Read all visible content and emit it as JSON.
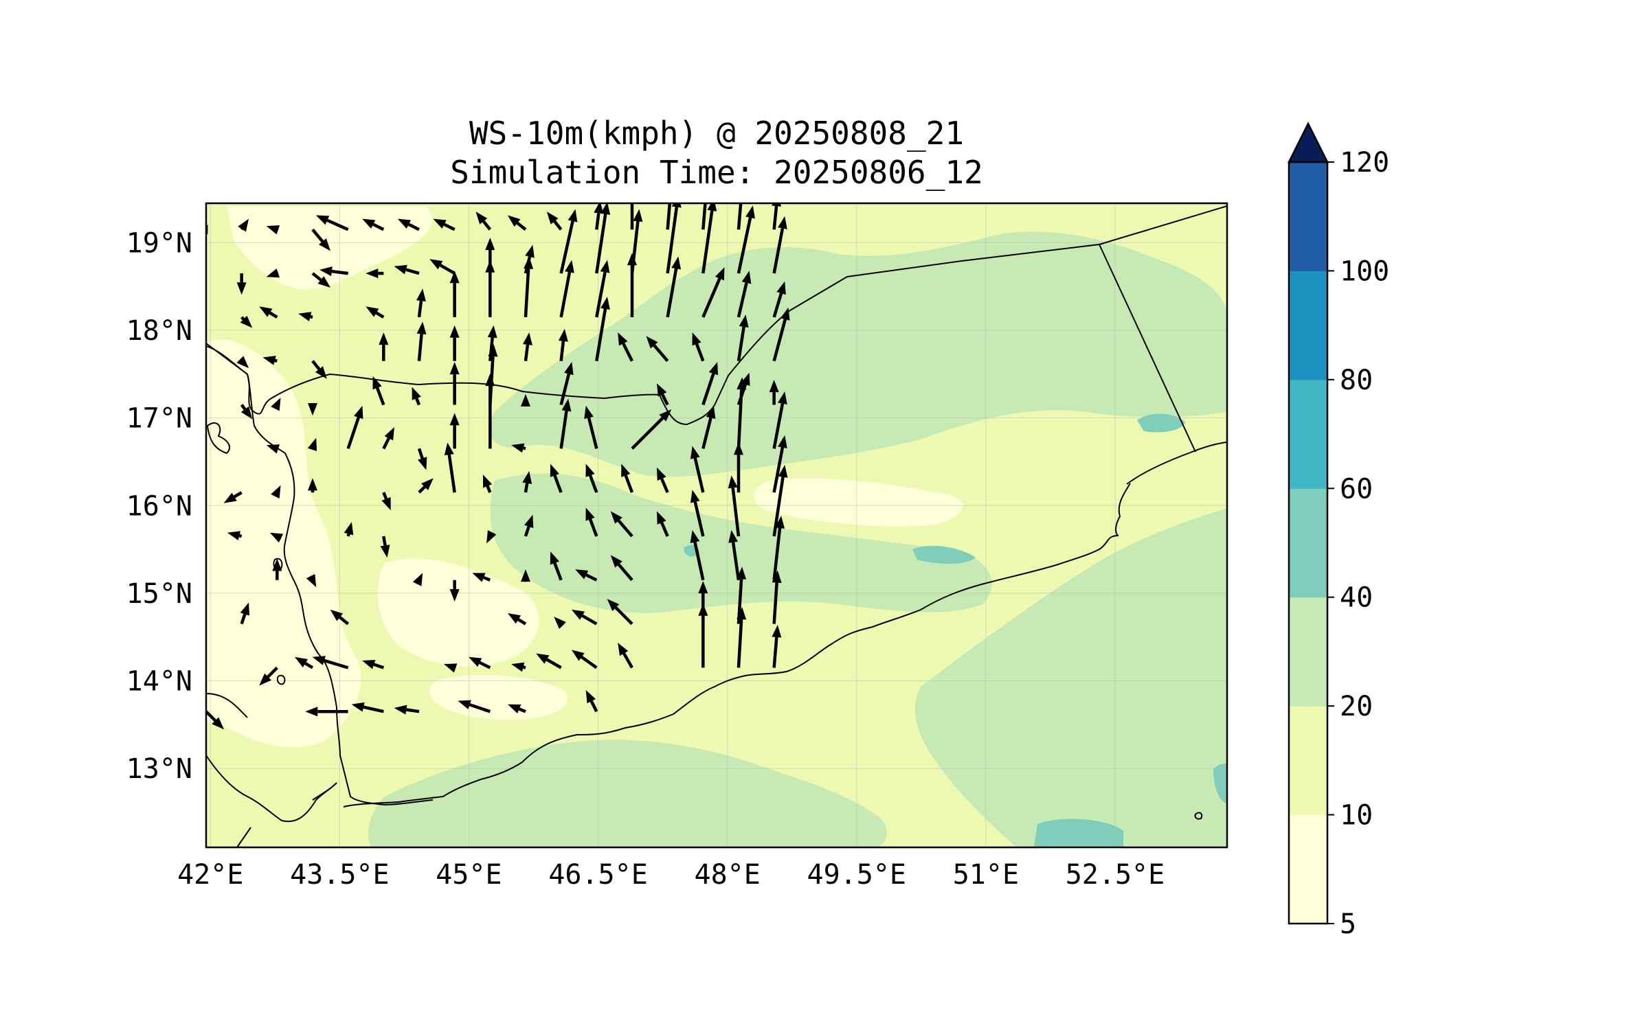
{
  "figure": {
    "title": "WS-10m(kmph) @ 20250808_21",
    "subtitle": "Simulation Time: 20250806_12"
  },
  "map": {
    "extent": {
      "lon": [
        41.95,
        53.8
      ],
      "lat": [
        12.1,
        19.45
      ]
    },
    "x_ticks": [
      {
        "value": 42.0,
        "label": "42°E"
      },
      {
        "value": 43.5,
        "label": "43.5°E"
      },
      {
        "value": 45.0,
        "label": "45°E"
      },
      {
        "value": 46.5,
        "label": "46.5°E"
      },
      {
        "value": 48.0,
        "label": "48°E"
      },
      {
        "value": 49.5,
        "label": "49.5°E"
      },
      {
        "value": 51.0,
        "label": "51°E"
      },
      {
        "value": 52.5,
        "label": "52.5°E"
      }
    ],
    "y_ticks": [
      {
        "value": 19,
        "label": "19°N"
      },
      {
        "value": 18,
        "label": "18°N"
      },
      {
        "value": 17,
        "label": "17°N"
      },
      {
        "value": 16,
        "label": "16°N"
      },
      {
        "value": 15,
        "label": "15°N"
      },
      {
        "value": 14,
        "label": "14°N"
      },
      {
        "value": 13,
        "label": "13°N"
      }
    ],
    "grid": true,
    "background_level": "5-10"
  },
  "colorbar": {
    "variable": "WS-10m(kmph)",
    "extend": "max",
    "extend_color": "#081d58",
    "levels": [
      {
        "value": 5,
        "label": "5"
      },
      {
        "value": 10,
        "label": "10"
      },
      {
        "value": 20,
        "label": "20"
      },
      {
        "value": 40,
        "label": "40"
      },
      {
        "value": 60,
        "label": "60"
      },
      {
        "value": 80,
        "label": "80"
      },
      {
        "value": 100,
        "label": "100"
      },
      {
        "value": 120,
        "label": "120"
      }
    ],
    "colors": [
      "#ffffd9",
      "#edf8b1",
      "#c7e9b4",
      "#7fcdbb",
      "#41b6c4",
      "#1d91c0",
      "#225ea8",
      "#253494"
    ]
  },
  "wind_field": {
    "origin_lon": 41.95,
    "origin_lat": 19.15,
    "step_lon": 0.412,
    "step_lat": 0.5,
    "rows": [
      [
        [
          -0.3,
          0.0
        ],
        [
          0.2,
          0.3
        ],
        [
          -0.3,
          0.1
        ],
        [
          0.5,
          -0.6
        ],
        [
          -0.9,
          0.4
        ],
        [
          -0.6,
          0.3
        ],
        [
          -0.6,
          0.3
        ],
        [
          -0.6,
          0.3
        ],
        [
          -0.4,
          0.5
        ],
        [
          -0.5,
          0.4
        ],
        [
          -0.4,
          0.5
        ],
        [
          0.1,
          0.8
        ],
        [
          0.0,
          1.2
        ],
        [
          0.1,
          1.2
        ],
        [
          0.1,
          1.2
        ],
        [
          0.1,
          1.2
        ],
        [
          0.1,
          1.0
        ]
      ],
      [
        [
          0.0,
          0.0
        ],
        [
          0.0,
          -0.6
        ],
        [
          -0.3,
          -0.1
        ],
        [
          0.5,
          -0.4
        ],
        [
          -0.8,
          0.1
        ],
        [
          -0.5,
          0.0
        ],
        [
          -0.7,
          0.2
        ],
        [
          -0.7,
          0.4
        ],
        [
          0.0,
          1.0
        ],
        [
          0.2,
          0.8
        ],
        [
          0.4,
          1.8
        ],
        [
          0.3,
          2.0
        ],
        [
          0.2,
          1.8
        ],
        [
          0.3,
          2.2
        ],
        [
          0.3,
          2.1
        ],
        [
          0.4,
          1.9
        ],
        [
          0.3,
          1.6
        ]
      ],
      [
        [
          0.0,
          0.0
        ],
        [
          0.3,
          -0.3
        ],
        [
          -0.5,
          0.3
        ],
        [
          -0.4,
          0.1
        ],
        [
          0.0,
          0.0
        ],
        [
          -0.5,
          0.3
        ],
        [
          0.1,
          0.8
        ],
        [
          0.0,
          1.3
        ],
        [
          0.0,
          1.6
        ],
        [
          0.1,
          1.7
        ],
        [
          0.3,
          1.6
        ],
        [
          0.3,
          1.6
        ],
        [
          0.0,
          1.8
        ],
        [
          0.3,
          1.7
        ],
        [
          0.6,
          1.4
        ],
        [
          0.3,
          1.3
        ],
        [
          0.3,
          1.0
        ]
      ],
      [
        [
          0.0,
          0.0
        ],
        [
          0.2,
          -0.2
        ],
        [
          -0.4,
          0.1
        ],
        [
          0.4,
          -0.5
        ],
        [
          0.0,
          0.0
        ],
        [
          0.0,
          0.8
        ],
        [
          0.1,
          1.1
        ],
        [
          0.0,
          1.0
        ],
        [
          0.1,
          1.0
        ],
        [
          0.1,
          0.8
        ],
        [
          0.1,
          0.9
        ],
        [
          0.3,
          1.8
        ],
        [
          -0.4,
          0.8
        ],
        [
          -0.6,
          0.7
        ],
        [
          -0.3,
          0.8
        ],
        [
          0.2,
          1.3
        ],
        [
          0.4,
          1.5
        ]
      ],
      [
        [
          0.0,
          0.0
        ],
        [
          0.3,
          -0.4
        ],
        [
          0.1,
          0.2
        ],
        [
          0.0,
          -0.3
        ],
        [
          0.0,
          0.0
        ],
        [
          -0.3,
          0.8
        ],
        [
          -0.2,
          0.5
        ],
        [
          0.0,
          1.2
        ],
        [
          0.1,
          1.7
        ],
        [
          0.0,
          0.3
        ],
        [
          0.3,
          1.2
        ],
        [
          0.0,
          0.0
        ],
        [
          0.0,
          0.0
        ],
        [
          -0.3,
          0.6
        ],
        [
          0.4,
          1.2
        ],
        [
          0.3,
          0.9
        ],
        [
          0.0,
          0.7
        ]
      ],
      [
        [
          0.0,
          0.0
        ],
        [
          0.0,
          0.0
        ],
        [
          -0.3,
          0.1
        ],
        [
          0.1,
          0.3
        ],
        [
          0.4,
          1.2
        ],
        [
          0.3,
          0.6
        ],
        [
          0.2,
          -0.6
        ],
        [
          0.0,
          1.0
        ],
        [
          0.0,
          2.1
        ],
        [
          -0.4,
          0.1
        ],
        [
          0.2,
          1.4
        ],
        [
          -0.3,
          1.2
        ],
        [
          1.1,
          1.1
        ],
        [
          0.0,
          0.0
        ],
        [
          0.3,
          1.2
        ],
        [
          0.1,
          2.0
        ],
        [
          0.3,
          1.6
        ]
      ],
      [
        [
          0.0,
          0.0
        ],
        [
          -0.5,
          -0.3
        ],
        [
          0.1,
          0.2
        ],
        [
          0.0,
          0.4
        ],
        [
          0.0,
          0.0
        ],
        [
          0.2,
          -0.5
        ],
        [
          0.4,
          0.4
        ],
        [
          -0.2,
          1.4
        ],
        [
          -0.2,
          0.5
        ],
        [
          0.1,
          0.6
        ],
        [
          -0.3,
          0.8
        ],
        [
          -0.3,
          0.8
        ],
        [
          -0.3,
          0.8
        ],
        [
          -0.3,
          0.7
        ],
        [
          -0.3,
          1.3
        ],
        [
          0.0,
          1.4
        ],
        [
          0.3,
          1.6
        ]
      ],
      [
        [
          0.0,
          0.0
        ],
        [
          -0.4,
          0.1
        ],
        [
          -0.2,
          0.1
        ],
        [
          0.0,
          0.0
        ],
        [
          0.1,
          0.4
        ],
        [
          0.1,
          -0.6
        ],
        [
          0.0,
          0.0
        ],
        [
          0.0,
          0.0
        ],
        [
          -0.1,
          -0.2
        ],
        [
          0.2,
          0.6
        ],
        [
          0.0,
          0.0
        ],
        [
          -0.3,
          0.8
        ],
        [
          -0.6,
          0.7
        ],
        [
          -0.3,
          0.7
        ],
        [
          -0.3,
          1.3
        ],
        [
          -0.2,
          1.7
        ],
        [
          0.3,
          2.0
        ]
      ],
      [
        [
          0.0,
          0.0
        ],
        [
          0.0,
          0.0
        ],
        [
          0.0,
          0.6
        ],
        [
          0.1,
          -0.2
        ],
        [
          0.0,
          0.0
        ],
        [
          0.0,
          0.0
        ],
        [
          0.1,
          0.2
        ],
        [
          0.0,
          -0.6
        ],
        [
          -0.5,
          0.2
        ],
        [
          0.0,
          0.3
        ],
        [
          -0.3,
          0.8
        ],
        [
          -0.6,
          0.3
        ],
        [
          -0.6,
          0.7
        ],
        [
          0.0,
          0.0
        ],
        [
          -0.3,
          1.4
        ],
        [
          -0.2,
          1.4
        ],
        [
          0.2,
          1.8
        ]
      ],
      [
        [
          0.0,
          0.0
        ],
        [
          0.2,
          0.6
        ],
        [
          0.0,
          0.0
        ],
        [
          0.0,
          0.0
        ],
        [
          -0.5,
          0.4
        ],
        [
          0.0,
          0.0
        ],
        [
          0.0,
          0.0
        ],
        [
          0.0,
          0.0
        ],
        [
          0.0,
          0.0
        ],
        [
          -0.5,
          0.3
        ],
        [
          -0.2,
          0.2
        ],
        [
          -0.7,
          0.4
        ],
        [
          -0.7,
          0.7
        ],
        [
          0.0,
          0.0
        ],
        [
          0.0,
          1.2
        ],
        [
          0.1,
          1.6
        ],
        [
          0.1,
          1.5
        ]
      ],
      [
        [
          0.0,
          0.0
        ],
        [
          0.0,
          0.0
        ],
        [
          -0.5,
          -0.5
        ],
        [
          -0.5,
          0.3
        ],
        [
          -1.0,
          0.3
        ],
        [
          -0.6,
          0.2
        ],
        [
          0.0,
          0.0
        ],
        [
          -0.3,
          0.1
        ],
        [
          -0.6,
          0.3
        ],
        [
          -0.4,
          0.1
        ],
        [
          -0.7,
          0.4
        ],
        [
          -0.7,
          0.5
        ],
        [
          -0.4,
          0.7
        ],
        [
          0.0,
          0.0
        ],
        [
          0.0,
          1.8
        ],
        [
          0.1,
          1.7
        ],
        [
          0.1,
          1.2
        ]
      ],
      [
        [
          0.5,
          -0.5
        ],
        [
          0.0,
          0.0
        ],
        [
          0.0,
          0.0
        ],
        [
          0.0,
          0.0
        ],
        [
          -1.2,
          0.0
        ],
        [
          -0.9,
          0.2
        ],
        [
          -0.7,
          0.1
        ],
        [
          0.0,
          0.0
        ],
        [
          -0.9,
          0.3
        ],
        [
          -0.5,
          0.2
        ],
        [
          0.0,
          0.0
        ],
        [
          -0.3,
          0.6
        ],
        [
          0.0,
          0.0
        ],
        [
          0.0,
          0.0
        ],
        [
          0.0,
          0.0
        ],
        [
          0.0,
          0.0
        ],
        [
          0.0,
          0.0
        ]
      ]
    ]
  }
}
